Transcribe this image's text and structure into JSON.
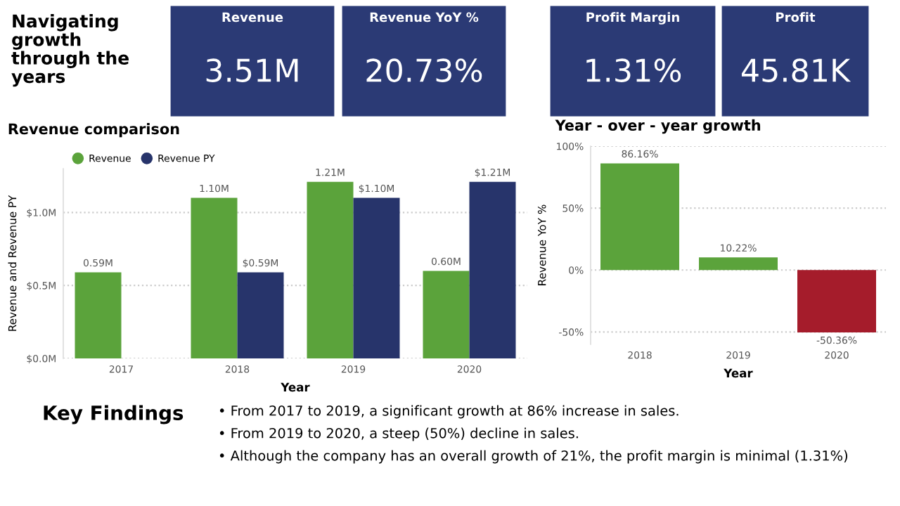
{
  "chart_data": [
    {
      "type": "other",
      "title": "Navigating growth through the years",
      "categories": [
        "Revenue",
        "Revenue YoY %",
        "Profit Margin",
        "Profit"
      ],
      "value_labels": [
        "3.51M",
        "20.73%",
        "1.31%",
        "45.81K"
      ],
      "color": "#2b3a75"
    },
    {
      "type": "bar",
      "title": "Revenue comparison",
      "xlabel": "Year",
      "ylabel": "Revenue and Revenue PY",
      "categories": [
        "2017",
        "2018",
        "2019",
        "2020"
      ],
      "series": [
        {
          "name": "Revenue",
          "color": "#5ba33b",
          "values": [
            0.59,
            1.1,
            1.21,
            0.6
          ],
          "value_labels": [
            "0.59M",
            "1.10M",
            "1.21M",
            "0.60M"
          ]
        },
        {
          "name": "Revenue PY",
          "color": "#27346b",
          "values": [
            null,
            0.59,
            1.1,
            1.21
          ],
          "value_labels": [
            null,
            "$0.59M",
            "$1.10M",
            "$1.21M"
          ]
        }
      ],
      "ylim": [
        0,
        1.3
      ],
      "yticks": [
        {
          "value": 0,
          "label": "$0.0M"
        },
        {
          "value": 0.5,
          "label": "$0.5M"
        },
        {
          "value": 1.0,
          "label": "$1.0M"
        }
      ],
      "grid": "y",
      "legend": "top left"
    },
    {
      "type": "bar",
      "title": "Year - over - year growth",
      "xlabel": "Year",
      "ylabel": "Revenue YoY %",
      "categories": [
        "2018",
        "2019",
        "2020"
      ],
      "values": [
        86.16,
        10.22,
        -50.36
      ],
      "colors": [
        "#5ba33b",
        "#5ba33b",
        "#a51c2b"
      ],
      "value_labels": [
        "86.16%",
        "10.22%",
        "-50.36%"
      ],
      "ylim": [
        -60,
        100
      ],
      "yticks": [
        {
          "value": -50,
          "label": "-50%"
        },
        {
          "value": 0,
          "label": "0%"
        },
        {
          "value": 50,
          "label": "50%"
        },
        {
          "value": 100,
          "label": "100%"
        }
      ],
      "grid": "y"
    },
    {
      "type": "other",
      "title": "Key Findings",
      "annotations": [
        "• From 2017 to 2019, a significant growth at 86% increase in sales.",
        "• From 2019 to 2020, a steep (50%) decline in sales.",
        "• Although the company has an overall growth of 21%, the profit margin is minimal (1.31%)"
      ]
    }
  ]
}
